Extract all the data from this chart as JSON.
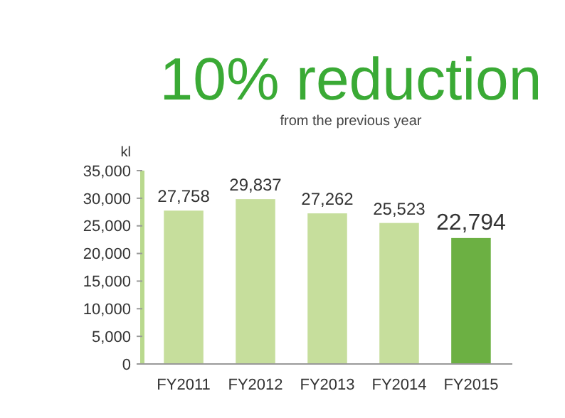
{
  "chart_data": {
    "type": "bar",
    "title": "10% reduction",
    "subtitle": "from the previous year",
    "ylabel": "kl",
    "categories": [
      "FY2011",
      "FY2012",
      "FY2013",
      "FY2014",
      "FY2015"
    ],
    "values": [
      27758,
      29837,
      27262,
      25523,
      22794
    ],
    "colors": [
      "#c6de9c",
      "#c6de9c",
      "#c6de9c",
      "#c6de9c",
      "#6cb043"
    ],
    "ylim": [
      0,
      35000
    ],
    "yticks": [
      {
        "value": 0,
        "label": "0"
      },
      {
        "value": 5000,
        "label": "5,000"
      },
      {
        "value": 10000,
        "label": "10,000"
      },
      {
        "value": 15000,
        "label": "15,000"
      },
      {
        "value": 20000,
        "label": "20,000"
      },
      {
        "value": 25000,
        "label": "25,000"
      },
      {
        "value": 30000,
        "label": "30,000"
      },
      {
        "value": 35000,
        "label": "35,000"
      }
    ],
    "value_labels": [
      "27,758",
      "29,837",
      "27,262",
      "25,523",
      "22,794"
    ]
  }
}
